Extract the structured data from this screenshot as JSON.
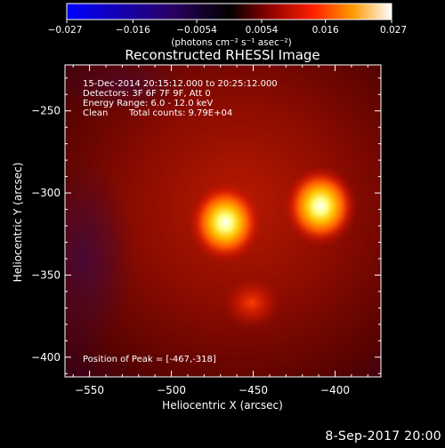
{
  "chart_data": {
    "type": "heatmap",
    "title": "Reconstructed RHESSI Image",
    "xlabel": "Heliocentric X (arcsec)",
    "ylabel": "Heliocentric Y (arcsec)",
    "xlim": [
      -565,
      -372
    ],
    "ylim": [
      -412,
      -222
    ],
    "x_ticks": [
      -550,
      -500,
      -450,
      -400
    ],
    "y_ticks": [
      -250,
      -300,
      -350,
      -400
    ],
    "colorbar": {
      "range": [
        -0.027,
        0.027
      ],
      "ticks": [
        -0.027,
        -0.016,
        -0.0054,
        0.0054,
        0.016,
        0.027
      ],
      "tick_labels": [
        "−0.027",
        "−0.016",
        "−0.0054",
        "0.0054",
        "0.016",
        "0.027"
      ],
      "unit_label": "(photons cm⁻² s⁻¹ asec⁻²)",
      "colors": [
        "#0000ff",
        "#2a0060",
        "#000000",
        "#8a0000",
        "#ff2000",
        "#ff9900",
        "#ffffff"
      ]
    },
    "sources": [
      {
        "x": -467,
        "y": -318,
        "peak": 0.027
      },
      {
        "x": -409,
        "y": -308,
        "peak": 0.026
      },
      {
        "x": -451,
        "y": -367,
        "peak": 0.012
      }
    ],
    "annotations": {
      "time_range": "15-Dec-2014 20:15:12.000 to 20:25:12.000",
      "detectors": "Detectors: 3F 6F 7F 9F, Att 0",
      "energy_range": "Energy Range: 6.0 - 12.0 keV",
      "method": "Clean",
      "total_counts": "Total counts: 9.79E+04",
      "peak_position": "Position of Peak = [-467,-318]"
    }
  },
  "footer": {
    "date_stamp": "8-Sep-2017 20:00"
  }
}
